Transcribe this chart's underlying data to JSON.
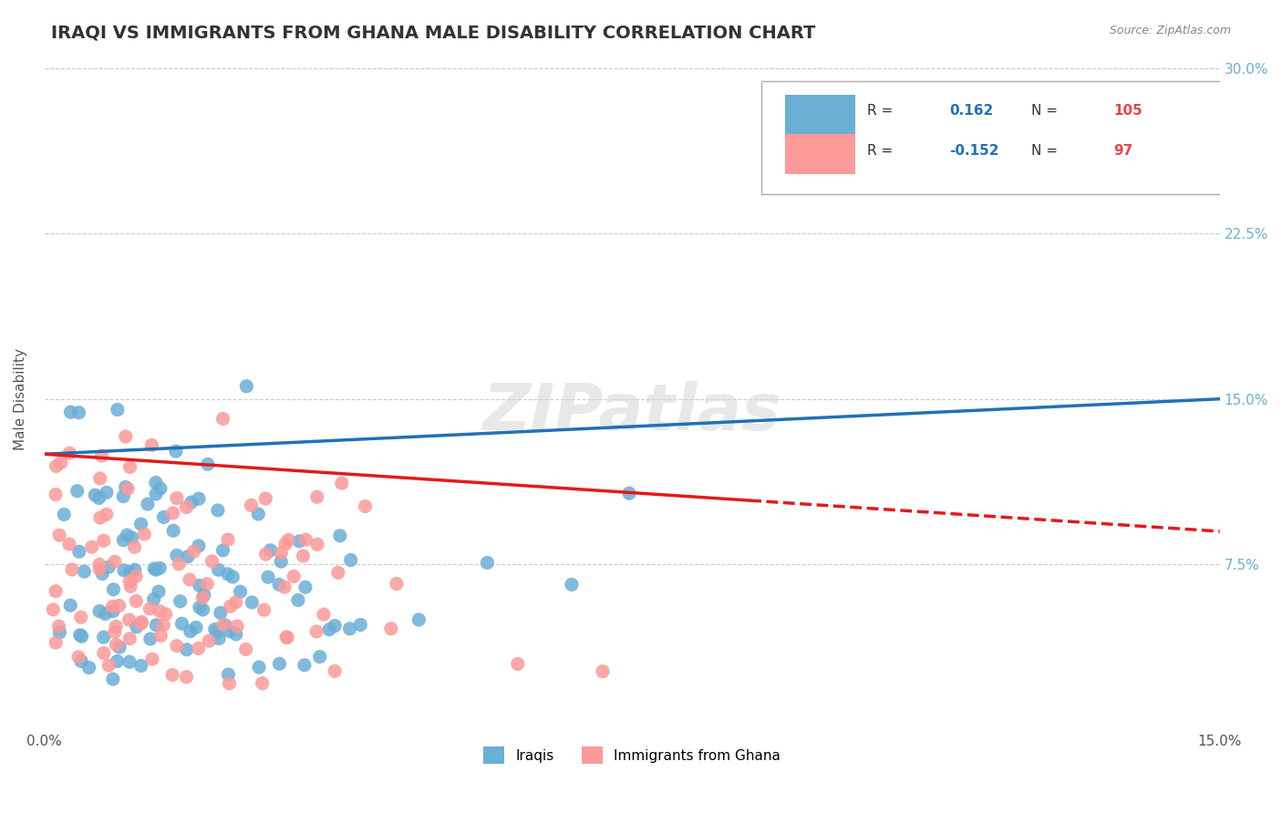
{
  "title": "IRAQI VS IMMIGRANTS FROM GHANA MALE DISABILITY CORRELATION CHART",
  "source": "Source: ZipAtlas.com",
  "xlabel": "",
  "ylabel": "Male Disability",
  "xlim": [
    0.0,
    0.15
  ],
  "ylim": [
    0.0,
    0.3
  ],
  "xtick_labels": [
    "0.0%",
    "15.0%"
  ],
  "ytick_values": [
    0.075,
    0.15,
    0.225,
    0.3
  ],
  "ytick_labels": [
    "7.5%",
    "15.0%",
    "22.5%",
    "30.0%"
  ],
  "iraqi_color": "#6baed6",
  "ghana_color": "#fb9a99",
  "iraqi_line_color": "#2171b5",
  "ghana_line_color": "#e31a1c",
  "R_iraqi": 0.162,
  "N_iraqi": 105,
  "R_ghana": -0.152,
  "N_ghana": 97,
  "watermark": "ZIPatlas",
  "legend_labels": [
    "Iraqis",
    "Immigrants from Ghana"
  ],
  "title_fontsize": 14,
  "label_fontsize": 11,
  "tick_fontsize": 11,
  "iraqi_seed": 42,
  "ghana_seed": 7
}
